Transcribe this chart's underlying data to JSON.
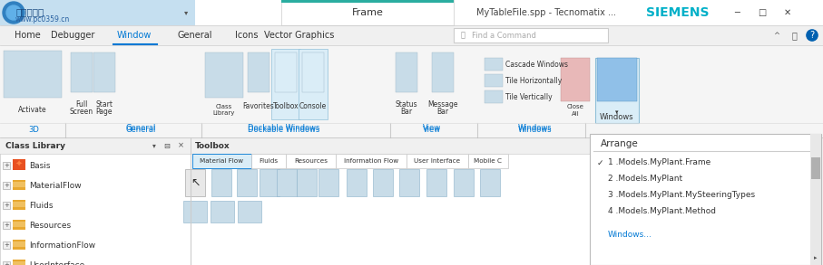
{
  "bg_color": "#f0f0f0",
  "white": "#ffffff",
  "teal_color": "#2aada0",
  "blue_text_color": "#0078d4",
  "dark_text": "#333333",
  "siemens_color": "#00b0c8",
  "tab_text": "Frame",
  "title_text": "MyTableFile.spp - Tecnomatix ...",
  "siemens_text": "SIEMENS",
  "menu_items": [
    "Home",
    "Debugger",
    "Window",
    "General",
    "Icons",
    "Vector Graphics"
  ],
  "menu_active": "Window",
  "ribbon_bg": "#f5f5f5",
  "highlight_ribbon_bg": "#daedf7",
  "dropdown_items": [
    "1 .Models.MyPlant.Frame",
    "2 .Models.MyPlant",
    "3 .Models.MyPlant.MySteeringTypes",
    "4 .Models.MyPlant.Method",
    "Windows..."
  ],
  "dropdown_header": "Arrange",
  "dropdown_check": "1 .Models.MyPlant.Frame",
  "class_lib_title": "Class Library",
  "class_lib_items": [
    "Basis",
    "MaterialFlow",
    "Fluids",
    "Resources",
    "InformationFlow",
    "UserInterface"
  ],
  "toolbox_title": "Toolbox",
  "toolbox_tabs": [
    "Material Flow",
    "Fluids",
    "Resources",
    "Information Flow",
    "User Interface",
    "Mobile C"
  ],
  "ribbon_btn_labels": [
    "Activate",
    "Full\nScreen",
    "Start\nPage",
    "Class\nLibrary",
    "Favorites",
    "Toolbox",
    "Console",
    "Status\nBar",
    "Message\nBar",
    "Close\nAll",
    "Windows"
  ],
  "win_items_text": [
    "Cascade Windows",
    "Tile Horizontally",
    "Tile Vertically"
  ],
  "section_names": [
    "3D",
    "General",
    "Dockable Windows",
    "View",
    "Windows"
  ],
  "section_centers": [
    37,
    155,
    313,
    476,
    590
  ],
  "section_dividers": [
    72,
    222,
    430,
    526,
    645
  ]
}
